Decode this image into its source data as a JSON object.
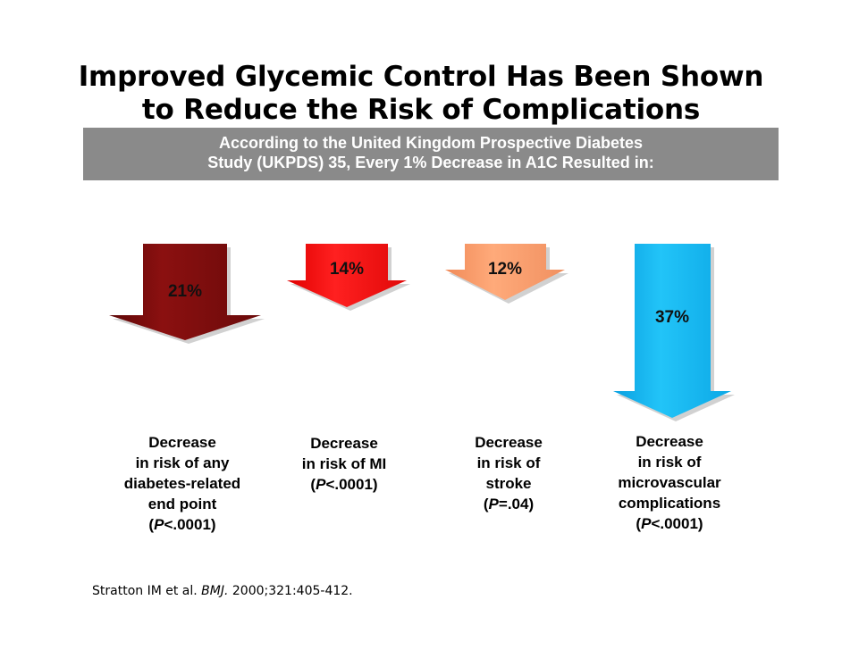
{
  "title": {
    "line1": "Improved Glycemic Control Has Been Shown",
    "line2": "to Reduce the Risk of Complications"
  },
  "subtitle": {
    "line1": "According to the United Kingdom Prospective Diabetes",
    "line2": "Study (UKPDS) 35, Every 1% Decrease in A1C Resulted in:"
  },
  "arrows": [
    {
      "value": "21%",
      "color": "#8b1010",
      "description": [
        "Decrease",
        "in risk of any",
        "diabetes-related",
        "end point"
      ],
      "pvalue": {
        "open": "(",
        "p": "P",
        "rest": "<.0001)"
      }
    },
    {
      "value": "14%",
      "color": "#ff1a1a",
      "description": [
        "Decrease",
        "in risk of MI"
      ],
      "pvalue": {
        "open": "(",
        "p": "P",
        "rest": "<.0001)"
      }
    },
    {
      "value": "12%",
      "color": "#ffa474",
      "description": [
        "Decrease",
        "in risk of",
        "stroke"
      ],
      "pvalue": {
        "open": "(",
        "p": "P",
        "rest": "=.04)"
      }
    },
    {
      "value": "37%",
      "color": "#1ab8f0",
      "description": [
        "Decrease",
        "in risk of",
        "microvascular",
        "complications"
      ],
      "pvalue": {
        "open": "(",
        "p": "P",
        "rest": "<.0001)"
      }
    }
  ],
  "citation": {
    "authors": "Stratton IM et al. ",
    "journal": "BMJ.",
    "details": " 2000;321:405-412."
  }
}
